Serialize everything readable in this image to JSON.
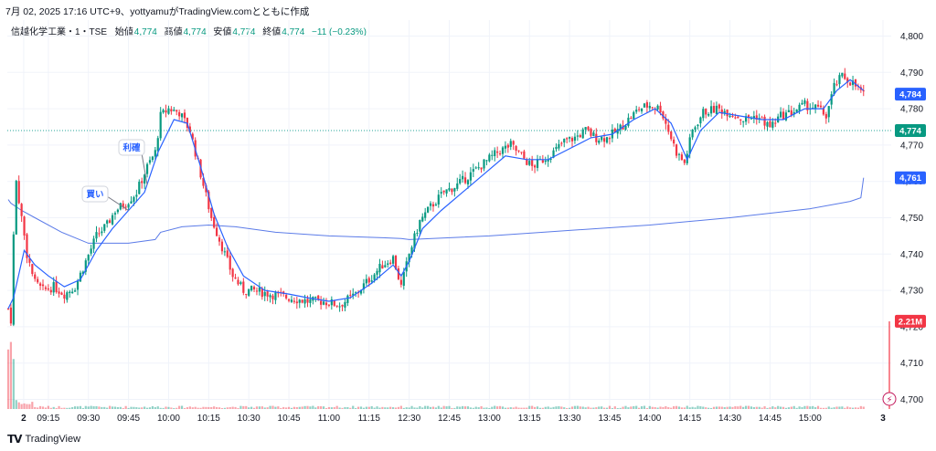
{
  "header": {
    "caption": "7月 02, 2025 17:16 UTC+9、yottyamuがTradingView.comとともに作成"
  },
  "legend": {
    "symbol": "信越化学工業・1・TSE",
    "open_label": "始値",
    "open": "4,774",
    "high_label": "高値",
    "high": "4,774",
    "low_label": "安値",
    "low": "4,774",
    "close_label": "終値",
    "close": "4,774",
    "change": "−11 (−0.23%)"
  },
  "footer": {
    "brand": "TradingView"
  },
  "colors": {
    "up": "#089981",
    "down": "#f23645",
    "ma": "#2962ff",
    "vwap": "#5b7be8",
    "price_line": "#26a69a"
  },
  "chart_data": {
    "type": "candlestick",
    "interval": "1 minute",
    "ylim": [
      4697,
      4805
    ],
    "y_ticks": [
      "4,700",
      "4,710",
      "4,720",
      "4,730",
      "4,740",
      "4,750",
      "4,760",
      "4,770",
      "4,780",
      "4,790",
      "4,800"
    ],
    "x_ticks": [
      "2",
      "09:15",
      "09:30",
      "09:45",
      "10:00",
      "10:15",
      "10:30",
      "10:45",
      "11:00",
      "11:15",
      "12:30",
      "12:45",
      "13:00",
      "13:15",
      "13:30",
      "13:45",
      "14:00",
      "14:15",
      "14:30",
      "14:45",
      "15:00",
      "3"
    ],
    "close_path": [
      [
        "09:00",
        4725
      ],
      [
        "09:01",
        4722
      ],
      [
        "09:02",
        4745
      ],
      [
        "09:03",
        4760
      ],
      [
        "09:05",
        4750
      ],
      [
        "09:07",
        4740
      ],
      [
        "09:10",
        4732
      ],
      [
        "09:13",
        4730
      ],
      [
        "09:17",
        4731
      ],
      [
        "09:21",
        4729
      ],
      [
        "09:25",
        4731
      ],
      [
        "09:29",
        4738
      ],
      [
        "09:33",
        4745
      ],
      [
        "09:37",
        4748
      ],
      [
        "09:40",
        4752
      ],
      [
        "09:44",
        4754
      ],
      [
        "09:48",
        4757
      ],
      [
        "09:52",
        4764
      ],
      [
        "09:55",
        4768
      ],
      [
        "09:57",
        4778
      ],
      [
        "10:00",
        4780
      ],
      [
        "10:04",
        4779
      ],
      [
        "10:08",
        4774
      ],
      [
        "10:12",
        4762
      ],
      [
        "10:16",
        4750
      ],
      [
        "10:20",
        4742
      ],
      [
        "10:24",
        4734
      ],
      [
        "10:28",
        4730
      ],
      [
        "10:32",
        4730
      ],
      [
        "10:38",
        4729
      ],
      [
        "10:45",
        4728
      ],
      [
        "10:52",
        4727
      ],
      [
        "10:58",
        4727
      ],
      [
        "11:04",
        4726
      ],
      [
        "11:10",
        4729
      ],
      [
        "11:15",
        4733
      ],
      [
        "11:20",
        4737
      ],
      [
        "11:24",
        4739
      ],
      [
        "11:27",
        4731
      ],
      [
        "12:30",
        4740
      ],
      [
        "12:34",
        4749
      ],
      [
        "12:38",
        4753
      ],
      [
        "12:43",
        4757
      ],
      [
        "12:48",
        4759
      ],
      [
        "12:53",
        4762
      ],
      [
        "12:58",
        4765
      ],
      [
        "13:03",
        4768
      ],
      [
        "13:08",
        4770
      ],
      [
        "13:12",
        4767
      ],
      [
        "13:16",
        4764
      ],
      [
        "13:20",
        4766
      ],
      [
        "13:24",
        4768
      ],
      [
        "13:28",
        4771
      ],
      [
        "13:32",
        4772
      ],
      [
        "13:36",
        4774
      ],
      [
        "13:40",
        4772
      ],
      [
        "13:44",
        4772
      ],
      [
        "13:48",
        4774
      ],
      [
        "13:52",
        4777
      ],
      [
        "13:56",
        4780
      ],
      [
        "14:00",
        4781
      ],
      [
        "14:04",
        4780
      ],
      [
        "14:07",
        4774
      ],
      [
        "14:10",
        4768
      ],
      [
        "14:13",
        4765
      ],
      [
        "14:16",
        4774
      ],
      [
        "14:20",
        4779
      ],
      [
        "14:25",
        4780
      ],
      [
        "14:30",
        4779
      ],
      [
        "14:35",
        4777
      ],
      [
        "14:40",
        4778
      ],
      [
        "14:45",
        4775
      ],
      [
        "14:49",
        4778
      ],
      [
        "14:53",
        4779
      ],
      [
        "14:58",
        4781
      ],
      [
        "15:03",
        4780
      ],
      [
        "15:06",
        4778
      ],
      [
        "15:09",
        4786
      ],
      [
        "15:12",
        4789
      ],
      [
        "15:16",
        4787
      ],
      [
        "15:20",
        4784
      ]
    ],
    "moving_average_path": [
      [
        "09:00",
        4725
      ],
      [
        "09:02",
        4728
      ],
      [
        "09:06",
        4741
      ],
      [
        "09:10",
        4737
      ],
      [
        "09:15",
        4734
      ],
      [
        "09:21",
        4731
      ],
      [
        "09:27",
        4733
      ],
      [
        "09:33",
        4741
      ],
      [
        "09:39",
        4747
      ],
      [
        "09:45",
        4752
      ],
      [
        "09:51",
        4757
      ],
      [
        "09:56",
        4768
      ],
      [
        "10:02",
        4777
      ],
      [
        "10:07",
        4776
      ],
      [
        "10:12",
        4764
      ],
      [
        "10:17",
        4751
      ],
      [
        "10:22",
        4742
      ],
      [
        "10:28",
        4734
      ],
      [
        "10:36",
        4730
      ],
      [
        "10:45",
        4729
      ],
      [
        "10:52",
        4728
      ],
      [
        "11:00",
        4727
      ],
      [
        "11:08",
        4728
      ],
      [
        "11:16",
        4732
      ],
      [
        "11:24",
        4737
      ],
      [
        "11:27",
        4734
      ],
      [
        "12:30",
        4738
      ],
      [
        "12:35",
        4747
      ],
      [
        "12:42",
        4752
      ],
      [
        "12:50",
        4757
      ],
      [
        "12:58",
        4762
      ],
      [
        "13:06",
        4767
      ],
      [
        "13:14",
        4766
      ],
      [
        "13:22",
        4766
      ],
      [
        "13:30",
        4769
      ],
      [
        "13:38",
        4772
      ],
      [
        "13:46",
        4773
      ],
      [
        "13:54",
        4777
      ],
      [
        "14:02",
        4780
      ],
      [
        "14:08",
        4776
      ],
      [
        "14:14",
        4766
      ],
      [
        "14:19",
        4774
      ],
      [
        "14:26",
        4779
      ],
      [
        "14:34",
        4778
      ],
      [
        "14:42",
        4777
      ],
      [
        "14:50",
        4777
      ],
      [
        "14:58",
        4780
      ],
      [
        "15:05",
        4780
      ],
      [
        "15:10",
        4785
      ],
      [
        "15:15",
        4788
      ],
      [
        "15:20",
        4785
      ]
    ],
    "vwap_path": [
      [
        "09:00",
        4755
      ],
      [
        "09:01",
        4754
      ],
      [
        "09:05",
        4752
      ],
      [
        "09:10",
        4750
      ],
      [
        "09:20",
        4746
      ],
      [
        "09:30",
        4743
      ],
      [
        "09:45",
        4743
      ],
      [
        "09:55",
        4744
      ],
      [
        "09:57",
        4746
      ],
      [
        "10:05",
        4747.5
      ],
      [
        "10:15",
        4748
      ],
      [
        "10:25",
        4747.5
      ],
      [
        "10:40",
        4746
      ],
      [
        "11:00",
        4745
      ],
      [
        "11:20",
        4744.5
      ],
      [
        "11:27",
        4744.3
      ],
      [
        "12:30",
        4744
      ],
      [
        "13:00",
        4745
      ],
      [
        "13:30",
        4746.5
      ],
      [
        "14:00",
        4748
      ],
      [
        "14:30",
        4750
      ],
      [
        "15:00",
        4752.5
      ],
      [
        "15:15",
        4754.5
      ],
      [
        "15:19",
        4755.5
      ],
      [
        "15:20",
        4761
      ]
    ],
    "price_line": 4774,
    "axis_badges": [
      {
        "value": 4784,
        "label": "4,784",
        "color": "#2962ff"
      },
      {
        "value": 4774,
        "label": "4,774",
        "color": "#089981"
      },
      {
        "value": 4761,
        "label": "4,761",
        "color": "#2962ff"
      },
      {
        "value": 4721.5,
        "label": "2.21M",
        "color": "#f23645"
      }
    ],
    "annotations": [
      {
        "label": "買い",
        "time": "09:45",
        "price": 4752
      },
      {
        "label": "利確",
        "time": "09:52",
        "price": 4759
      }
    ]
  }
}
